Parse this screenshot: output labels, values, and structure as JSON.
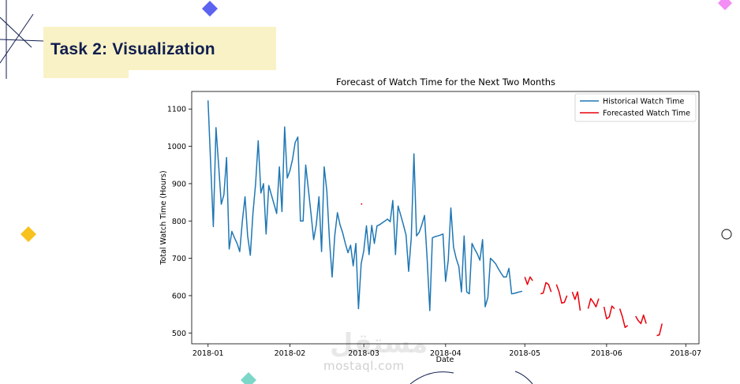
{
  "slide": {
    "title": "Task 2: Visualization",
    "title_color": "#111e4f",
    "box_color": "#f8f2c6"
  },
  "watermark": {
    "text": "mostaql.com",
    "arabic": "مستقل"
  },
  "chart_data": {
    "type": "line",
    "title": "Forecast of Watch Time for the Next Two Months",
    "xlabel": "Date",
    "ylabel": "Total Watch Time (Hours)",
    "x_range": [
      -6.2,
      186
    ],
    "ylim": [
      471,
      1147
    ],
    "y_ticks": [
      500,
      600,
      700,
      800,
      900,
      1000,
      1100
    ],
    "x_ticks": [
      {
        "label": "2018-01",
        "day": 0
      },
      {
        "label": "2018-02",
        "day": 31
      },
      {
        "label": "2018-03",
        "day": 59
      },
      {
        "label": "2018-04",
        "day": 90
      },
      {
        "label": "2018-05",
        "day": 120
      },
      {
        "label": "2018-06",
        "day": 151
      },
      {
        "label": "2018-07",
        "day": 181
      }
    ],
    "legend": {
      "placement": "top-right"
    },
    "series": [
      {
        "name": "Historical Watch Time",
        "color": "#1f77b4",
        "x": [
          0,
          1,
          2,
          3,
          4,
          5,
          6,
          7,
          8,
          9,
          10,
          11,
          12,
          13,
          14,
          15,
          16,
          17,
          18,
          19,
          20,
          21,
          22,
          23,
          24,
          25,
          26,
          27,
          28,
          29,
          30,
          31,
          32,
          33,
          34,
          35,
          36,
          37,
          38,
          39,
          40,
          41,
          42,
          43,
          44,
          45,
          46,
          47,
          48,
          49,
          50,
          51,
          52,
          53,
          54,
          55,
          56,
          57,
          58,
          59,
          60,
          61,
          62,
          63,
          64,
          65,
          66,
          67,
          68,
          69,
          70,
          71,
          72,
          73,
          74,
          75,
          76,
          77,
          78,
          79,
          80,
          81,
          82,
          83,
          84,
          85,
          86,
          87,
          88,
          89,
          90,
          91,
          92,
          93,
          94,
          95,
          96,
          97,
          98,
          99,
          100,
          101,
          102,
          103,
          104,
          105,
          106,
          107,
          108,
          109,
          110,
          111,
          112,
          113,
          114,
          115,
          116,
          117,
          118,
          119
        ],
        "values": [
          1123,
          950,
          785,
          1050,
          950,
          845,
          870,
          970,
          725,
          772,
          755,
          740,
          718,
          800,
          865,
          760,
          708,
          820,
          900,
          1015,
          875,
          900,
          765,
          895,
          870,
          845,
          820,
          945,
          825,
          1052,
          915,
          935,
          965,
          1010,
          1025,
          800,
          800,
          950,
          885,
          820,
          750,
          790,
          865,
          718,
          945,
          880,
          750,
          650,
          760,
          822,
          790,
          768,
          740,
          715,
          735,
          680,
          740,
          565,
          685,
          720,
          787,
          710,
          788,
          740,
          787,
          790,
          795,
          800,
          805,
          798,
          855,
          710,
          840,
          815,
          790,
          762,
          665,
          755,
          980,
          760,
          770,
          790,
          815,
          700,
          560,
          755,
          758,
          760,
          762,
          765,
          638,
          695,
          835,
          730,
          700,
          678,
          610,
          760,
          610,
          605,
          740,
          725,
          712,
          695,
          750,
          570,
          595,
          700,
          693,
          685,
          672,
          660,
          650,
          650,
          673,
          605,
          606,
          608,
          610,
          612
        ]
      },
      {
        "name": "Forecasted Watch Time",
        "color": "#e8000b",
        "x": [
          58,
          58.3,
          null,
          120,
          121,
          122,
          123,
          124,
          null,
          126,
          127,
          128,
          129,
          130,
          null,
          132,
          133,
          134,
          135,
          136,
          null,
          138,
          139,
          140,
          141,
          142,
          null,
          144,
          145,
          146,
          147,
          148,
          null,
          150,
          151,
          152,
          153,
          154,
          null,
          156,
          157,
          158,
          159,
          160,
          null,
          162,
          163,
          164,
          165,
          166,
          null,
          168,
          169,
          170,
          171,
          172,
          null,
          174,
          175,
          176
        ],
        "values": [
          847,
          844,
          null,
          650,
          630,
          650,
          640,
          null,
          null,
          605,
          607,
          635,
          630,
          610,
          null,
          630,
          610,
          580,
          582,
          600,
          null,
          610,
          590,
          610,
          560,
          null,
          null,
          565,
          592,
          582,
          570,
          592,
          null,
          570,
          538,
          543,
          572,
          565,
          null,
          565,
          543,
          515,
          520,
          null,
          null,
          545,
          533,
          525,
          548,
          525,
          null,
          null,
          null,
          493,
          495,
          525,
          null,
          null,
          null,
          null
        ]
      }
    ]
  }
}
